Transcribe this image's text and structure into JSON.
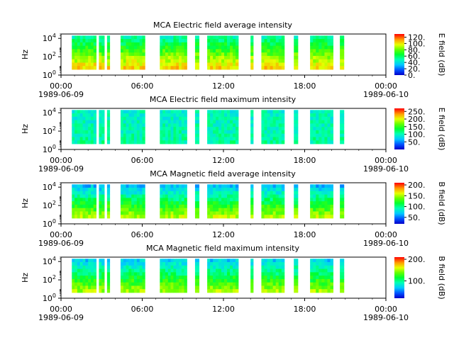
{
  "chart_data": [
    {
      "type": "heatmap",
      "title": "MCA  Electric field average intensity",
      "ylabel": "Hz",
      "colorbar_label": "E field (dB)",
      "colorbar_ticks": [
        "0.",
        "20.",
        "40.",
        "60.",
        "80.",
        "100.",
        "120."
      ],
      "colorbar_range": [
        0,
        130
      ],
      "y_ticks": [
        "10^0",
        "10^2",
        "10^4"
      ],
      "x_ticks": [
        {
          "time": "00:00",
          "date": "1989-06-09"
        },
        {
          "time": "06:00",
          "date": ""
        },
        {
          "time": "12:00",
          "date": ""
        },
        {
          "time": "18:00",
          "date": ""
        },
        {
          "time": "00:00",
          "date": "1989-06-10"
        }
      ],
      "data_intervals_hours": [
        [
          0.8,
          2.6
        ],
        [
          2.8,
          3.2
        ],
        [
          3.4,
          3.6
        ],
        [
          4.4,
          6.2
        ],
        [
          7.3,
          9.3
        ],
        [
          9.9,
          10.2
        ],
        [
          10.8,
          13.1
        ],
        [
          14.0,
          14.2
        ],
        [
          14.8,
          16.5
        ],
        [
          17.2,
          17.5
        ],
        [
          18.4,
          20.1
        ],
        [
          20.6,
          20.9
        ]
      ],
      "x_range_hours": [
        0,
        24
      ],
      "y_range": [
        1,
        30000
      ],
      "y_scale": "log"
    },
    {
      "type": "heatmap",
      "title": "MCA  Electric field maximum intensity",
      "ylabel": "Hz",
      "colorbar_label": "E field (dB)",
      "colorbar_ticks": [
        "50.",
        "100.",
        "150.",
        "200.",
        "250."
      ],
      "colorbar_range": [
        0,
        270
      ],
      "y_ticks": [
        "10^0",
        "10^2",
        "10^4"
      ],
      "x_ticks": [
        {
          "time": "00:00",
          "date": "1989-06-09"
        },
        {
          "time": "06:00",
          "date": ""
        },
        {
          "time": "12:00",
          "date": ""
        },
        {
          "time": "18:00",
          "date": ""
        },
        {
          "time": "00:00",
          "date": "1989-06-10"
        }
      ],
      "data_intervals_hours": [
        [
          0.8,
          2.6
        ],
        [
          2.8,
          3.2
        ],
        [
          3.4,
          3.6
        ],
        [
          4.4,
          6.2
        ],
        [
          7.3,
          9.3
        ],
        [
          9.9,
          10.2
        ],
        [
          10.8,
          13.1
        ],
        [
          14.0,
          14.2
        ],
        [
          14.8,
          16.5
        ],
        [
          17.2,
          17.5
        ],
        [
          18.4,
          20.1
        ],
        [
          20.6,
          20.9
        ]
      ],
      "x_range_hours": [
        0,
        24
      ],
      "y_range": [
        1,
        30000
      ],
      "y_scale": "log"
    },
    {
      "type": "heatmap",
      "title": "MCA  Magnetic field average intensity",
      "ylabel": "Hz",
      "colorbar_label": "B field (dB)",
      "colorbar_ticks": [
        "50.",
        "100.",
        "150.",
        "200."
      ],
      "colorbar_range": [
        20,
        210
      ],
      "y_ticks": [
        "10^0",
        "10^2",
        "10^4"
      ],
      "x_ticks": [
        {
          "time": "00:00",
          "date": "1989-06-09"
        },
        {
          "time": "06:00",
          "date": ""
        },
        {
          "time": "12:00",
          "date": ""
        },
        {
          "time": "18:00",
          "date": ""
        },
        {
          "time": "00:00",
          "date": "1989-06-10"
        }
      ],
      "data_intervals_hours": [
        [
          0.8,
          2.6
        ],
        [
          2.8,
          3.2
        ],
        [
          3.4,
          3.6
        ],
        [
          4.4,
          6.2
        ],
        [
          7.3,
          9.3
        ],
        [
          9.9,
          10.2
        ],
        [
          10.8,
          13.1
        ],
        [
          14.0,
          14.2
        ],
        [
          14.8,
          16.5
        ],
        [
          17.2,
          17.5
        ],
        [
          18.4,
          20.1
        ],
        [
          20.6,
          20.9
        ]
      ],
      "x_range_hours": [
        0,
        24
      ],
      "y_range": [
        1,
        30000
      ],
      "y_scale": "log"
    },
    {
      "type": "heatmap",
      "title": "MCA  Magnetic field maximum intensity",
      "ylabel": "Hz",
      "colorbar_label": "B field (dB)",
      "colorbar_ticks": [
        "100.",
        "200."
      ],
      "colorbar_range": [
        20,
        210
      ],
      "y_ticks": [
        "10^0",
        "10^2",
        "10^4"
      ],
      "x_ticks": [
        {
          "time": "00:00",
          "date": "1989-06-09"
        },
        {
          "time": "06:00",
          "date": ""
        },
        {
          "time": "12:00",
          "date": ""
        },
        {
          "time": "18:00",
          "date": ""
        },
        {
          "time": "00:00",
          "date": "1989-06-10"
        }
      ],
      "data_intervals_hours": [
        [
          0.8,
          2.6
        ],
        [
          2.8,
          3.2
        ],
        [
          3.4,
          3.6
        ],
        [
          4.4,
          6.2
        ],
        [
          7.3,
          9.3
        ],
        [
          9.9,
          10.2
        ],
        [
          10.8,
          13.1
        ],
        [
          14.0,
          14.2
        ],
        [
          14.8,
          16.5
        ],
        [
          17.2,
          17.5
        ],
        [
          18.4,
          20.1
        ],
        [
          20.6,
          20.9
        ]
      ],
      "x_range_hours": [
        0,
        24
      ],
      "y_range": [
        1,
        30000
      ],
      "y_scale": "log"
    }
  ]
}
